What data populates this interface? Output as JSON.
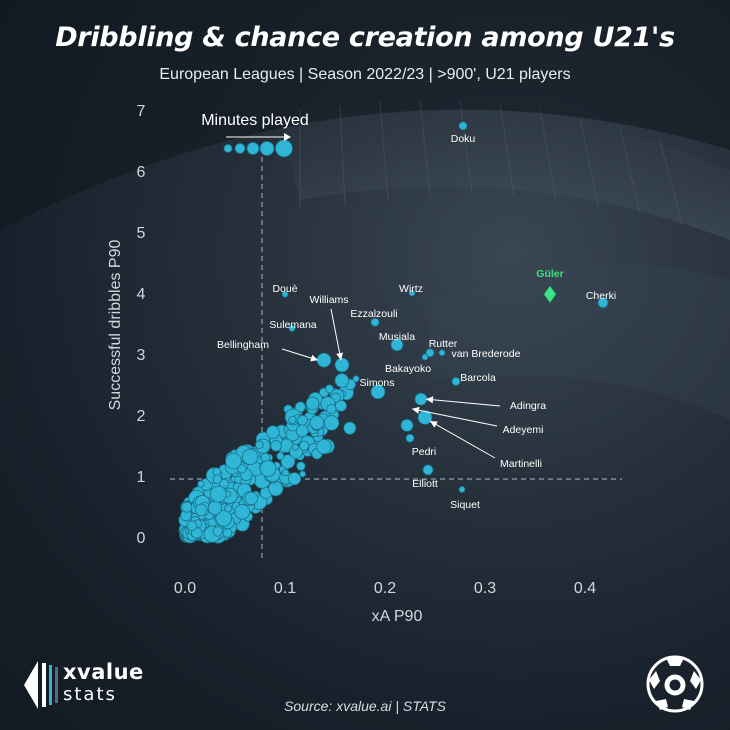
{
  "title": "Dribbling & chance creation among U21's",
  "subtitle": "European Leagues | Season 2022/23 | >900', U21 players",
  "source": "Source: xvalue.ai | STATS",
  "brand": {
    "line1": "xvalue",
    "line2": "stats"
  },
  "colors": {
    "dot": "#2fb6d6",
    "dot_stroke": "#1a6f86",
    "highlight": "#3ee08a",
    "label": "#ffffff",
    "axis_text": "#d0d7de",
    "ref_line": "#8a96a2"
  },
  "chart_data": {
    "type": "scatter",
    "xlabel": "xA P90",
    "ylabel": "Successful dribbles P90",
    "xlim": [
      -0.02,
      0.44
    ],
    "ylim": [
      -0.3,
      7.2
    ],
    "xticks": [
      "0.0",
      "0.1",
      "0.2",
      "0.3",
      "0.4"
    ],
    "xtick_values": [
      0.0,
      0.1,
      0.2,
      0.3,
      0.4
    ],
    "yticks": [
      "0",
      "1",
      "2",
      "3",
      "4",
      "5",
      "6",
      "7"
    ],
    "ytick_values": [
      0,
      1,
      2,
      3,
      4,
      5,
      6,
      7
    ],
    "reference_lines": {
      "x": 0.077,
      "y": 0.95
    },
    "size_legend": {
      "label": "Minutes played",
      "x": [
        0.043,
        0.055,
        0.068,
        0.082,
        0.099
      ],
      "y": 6.37,
      "r": [
        4,
        5,
        6,
        7,
        8.5
      ]
    },
    "highlight": {
      "name": "Güler",
      "x": 0.365,
      "y": 3.98
    },
    "labeled_points": [
      {
        "name": "Doku",
        "x": 0.278,
        "y": 6.74,
        "r": 4
      },
      {
        "name": "Cherki",
        "x": 0.418,
        "y": 3.84,
        "r": 5
      },
      {
        "name": "Wirtz",
        "x": 0.227,
        "y": 4.0,
        "r": 3
      },
      {
        "name": "Douè",
        "x": 0.1,
        "y": 3.98,
        "r": 3
      },
      {
        "name": "Williams",
        "x": 0.157,
        "y": 2.82,
        "r": 7
      },
      {
        "name": "Ezzalzouli",
        "x": 0.19,
        "y": 3.52,
        "r": 4
      },
      {
        "name": "Sulemana",
        "x": 0.107,
        "y": 3.42,
        "r": 3
      },
      {
        "name": "Musiala",
        "x": 0.212,
        "y": 3.15,
        "r": 6
      },
      {
        "name": "Rutter",
        "x": 0.245,
        "y": 3.02,
        "r": 4
      },
      {
        "name": "van Brederode",
        "x": 0.257,
        "y": 3.02,
        "r": 3
      },
      {
        "name": "Bellingham",
        "x": 0.139,
        "y": 2.9,
        "r": 7
      },
      {
        "name": "Bakayoko",
        "x": 0.24,
        "y": 2.95,
        "r": 3
      },
      {
        "name": "Barcola",
        "x": 0.271,
        "y": 2.55,
        "r": 4
      },
      {
        "name": "Simons",
        "x": 0.193,
        "y": 2.38,
        "r": 7
      },
      {
        "name": "Adingra",
        "x": 0.236,
        "y": 2.26,
        "r": 6
      },
      {
        "name": "Adeyemi",
        "x": 0.24,
        "y": 1.96,
        "r": 7
      },
      {
        "name": "Martinelli",
        "x": 0.222,
        "y": 1.83,
        "r": 6
      },
      {
        "name": "Pedri",
        "x": 0.225,
        "y": 1.62,
        "r": 4
      },
      {
        "name": "Elliott",
        "x": 0.243,
        "y": 1.1,
        "r": 5
      },
      {
        "name": "Siquet",
        "x": 0.277,
        "y": 0.78,
        "r": 3
      }
    ],
    "other_points_note": "Unlabeled cluster of several hundred U21 players concentrated between xA 0.0–0.17 and dribbles 0–2.6."
  }
}
